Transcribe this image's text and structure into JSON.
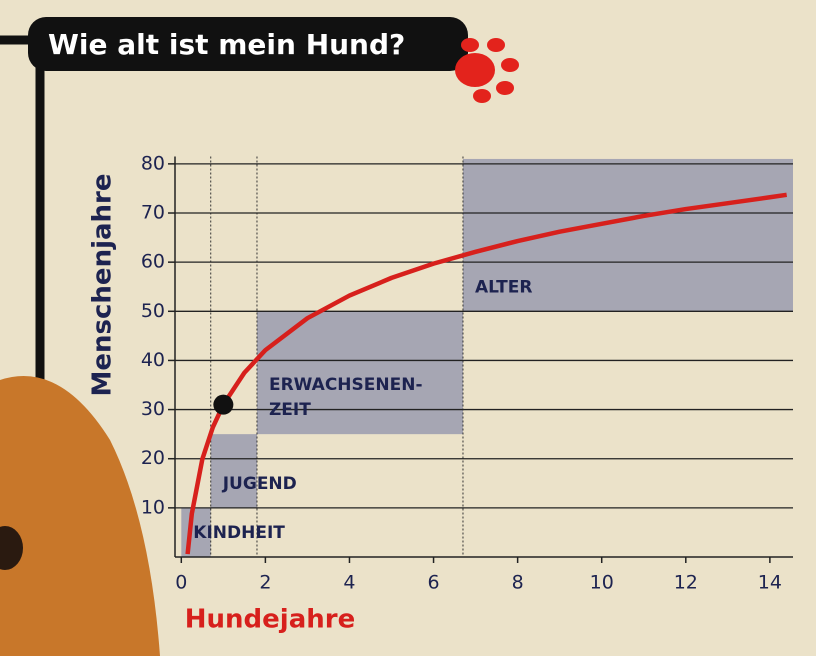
{
  "chart_data": {
    "type": "line",
    "title": "Wie alt ist mein Hund?",
    "xlabel": "Hundejahre",
    "ylabel": "Menschenjahre",
    "x": [
      0.15,
      0.25,
      0.5,
      0.75,
      1,
      1.5,
      2,
      3,
      4,
      5,
      6,
      7,
      8,
      9,
      10,
      11,
      12,
      13,
      14,
      14.4
    ],
    "series": [
      {
        "color": "#d7201c",
        "values": [
          0.6,
          8.8,
          19.9,
          26.4,
          31,
          37.5,
          42.1,
          48.6,
          53.2,
          56.8,
          59.7,
          62.1,
          64.3,
          66.2,
          67.8,
          69.4,
          70.8,
          72,
          73.2,
          73.7
        ]
      }
    ],
    "marker": {
      "x": 1,
      "y": 31,
      "color": "#111111"
    },
    "regions": [
      {
        "label": [
          "KINDHEIT"
        ],
        "x0": 0,
        "x1": 0.7,
        "y0": 0,
        "y1": 10
      },
      {
        "label": [
          "JUGEND"
        ],
        "x0": 0.7,
        "x1": 1.8,
        "y0": 10,
        "y1": 25
      },
      {
        "label": [
          "ERWACHSENEN-",
          "ZEIT"
        ],
        "x0": 1.8,
        "x1": 6.7,
        "y0": 25,
        "y1": 50
      },
      {
        "label": [
          "ALTER"
        ],
        "x0": 6.7,
        "x1": 14.55,
        "y0": 50,
        "y1": 81
      }
    ],
    "region_color": "#8f92ab",
    "xlim": [
      -0.15,
      14.55
    ],
    "ylim": [
      0,
      81.5
    ],
    "xticks": [
      0,
      2,
      4,
      6,
      8,
      10,
      12,
      14
    ],
    "yticks": [
      10,
      20,
      30,
      40,
      50,
      60,
      70,
      80
    ],
    "grid": true
  }
}
